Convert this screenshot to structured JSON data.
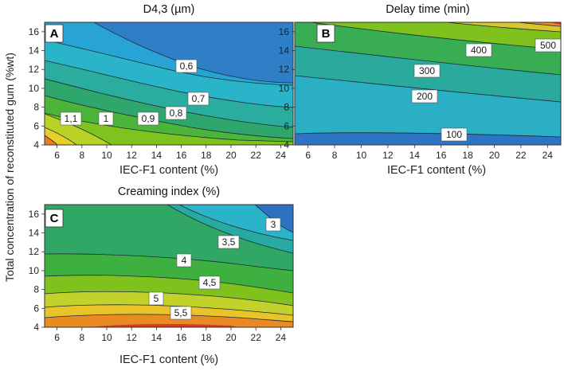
{
  "figure": {
    "shared_ylabel": "Total concentration of reconstituted gum (%wt)"
  },
  "chart_data": [
    {
      "type": "contour",
      "panel": "A",
      "title": "D4,3 (µm)",
      "xlabel": "IEC-F1 content (%)",
      "xlim": [
        5,
        25
      ],
      "ylim": [
        4,
        17
      ],
      "xticks": [
        "6",
        "8",
        "10",
        "12",
        "14",
        "16",
        "18",
        "20",
        "22",
        "24"
      ],
      "yticks": [
        "4",
        "6",
        "8",
        "10",
        "12",
        "14",
        "16"
      ],
      "contour_labels": [
        "1,1",
        "1",
        "0,9",
        "0,8",
        "0,7",
        "0,6"
      ],
      "contour_levels": [
        1.1,
        1.0,
        0.9,
        0.8,
        0.7,
        0.6
      ]
    },
    {
      "type": "contour",
      "panel": "B",
      "title": "Delay time (min)",
      "xlabel": "IEC-F1 content (%)",
      "xlim": [
        5,
        25
      ],
      "ylim": [
        4,
        17
      ],
      "xticks": [
        "6",
        "8",
        "10",
        "12",
        "14",
        "16",
        "18",
        "20",
        "22",
        "24"
      ],
      "yticks": [
        "4",
        "6",
        "8",
        "10",
        "12",
        "14",
        "16"
      ],
      "contour_labels": [
        "100",
        "200",
        "300",
        "400",
        "500"
      ],
      "contour_levels": [
        100,
        200,
        300,
        400,
        500
      ]
    },
    {
      "type": "contour",
      "panel": "C",
      "title": "Creaming index (%)",
      "xlabel": "IEC-F1 content (%)",
      "xlim": [
        5,
        25
      ],
      "ylim": [
        4,
        17
      ],
      "xticks": [
        "6",
        "8",
        "10",
        "12",
        "14",
        "16",
        "18",
        "20",
        "22",
        "24"
      ],
      "yticks": [
        "4",
        "6",
        "8",
        "10",
        "12",
        "14",
        "16"
      ],
      "contour_labels": [
        "3",
        "3,5",
        "4",
        "4,5",
        "5",
        "5,5"
      ],
      "contour_levels": [
        3,
        3.5,
        4,
        4.5,
        5,
        5.5
      ]
    }
  ]
}
